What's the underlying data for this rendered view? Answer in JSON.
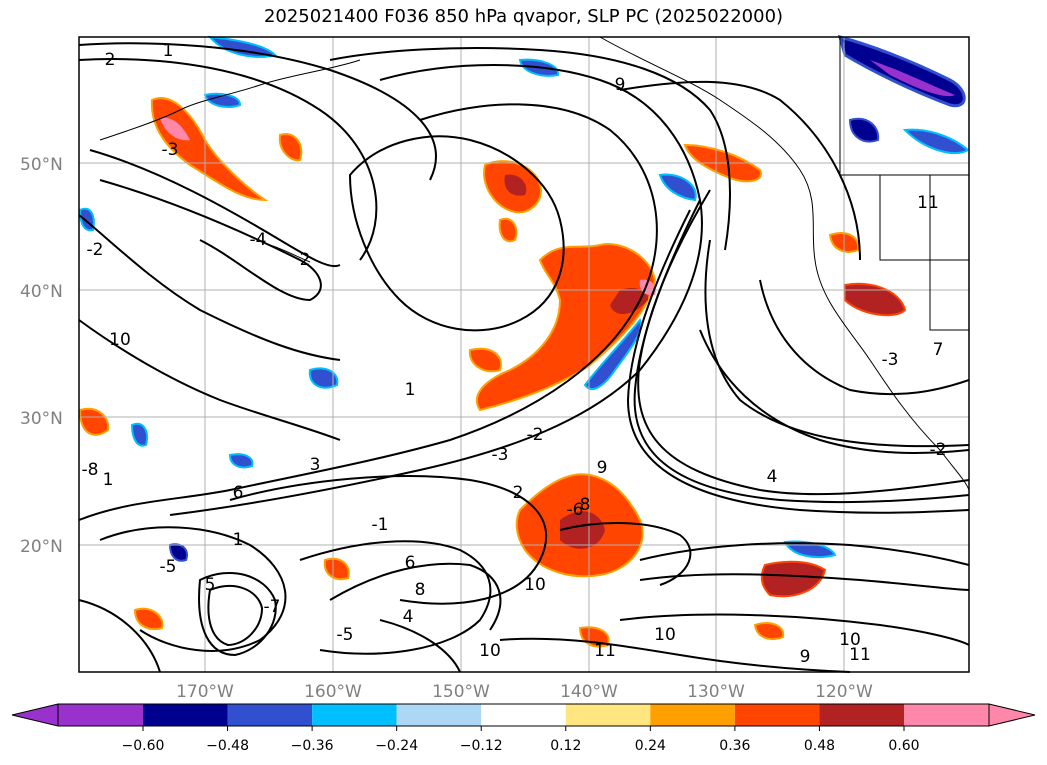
{
  "title": "2025021400 F036 850 hPa qvapor, SLP PC (2025022000)",
  "latitude_labels": [
    "50°N",
    "40°N",
    "30°N",
    "20°N"
  ],
  "longitude_labels": [
    "170°W",
    "160°W",
    "150°W",
    "140°W",
    "130°W",
    "120°W"
  ],
  "colorbar": {
    "colors": [
      "#9932cc",
      "#000090",
      "#3050d0",
      "#00bfff",
      "#add8f5",
      "#ffffff",
      "#ffe680",
      "#ffa000",
      "#ff4500",
      "#b22222",
      "#ff88aa"
    ],
    "tick_labels": [
      "−0.60",
      "−0.48",
      "−0.36",
      "−0.24",
      "−0.12",
      "0.12",
      "0.24",
      "0.36",
      "0.48",
      "0.60"
    ]
  },
  "contour_labels": [
    "1",
    "2",
    "-3",
    "-2",
    "-4",
    "2",
    "1",
    "3",
    "-3",
    "-2",
    "1",
    "2",
    "9",
    "8",
    "10",
    "-1",
    "-6",
    "1",
    "-5",
    "5",
    "-7",
    "6",
    "8",
    "4",
    "-5",
    "10",
    "11",
    "10",
    "9",
    "11",
    "10",
    "9",
    "11",
    "10",
    "7",
    "-3",
    "-2",
    "4",
    "6",
    "-8"
  ]
}
